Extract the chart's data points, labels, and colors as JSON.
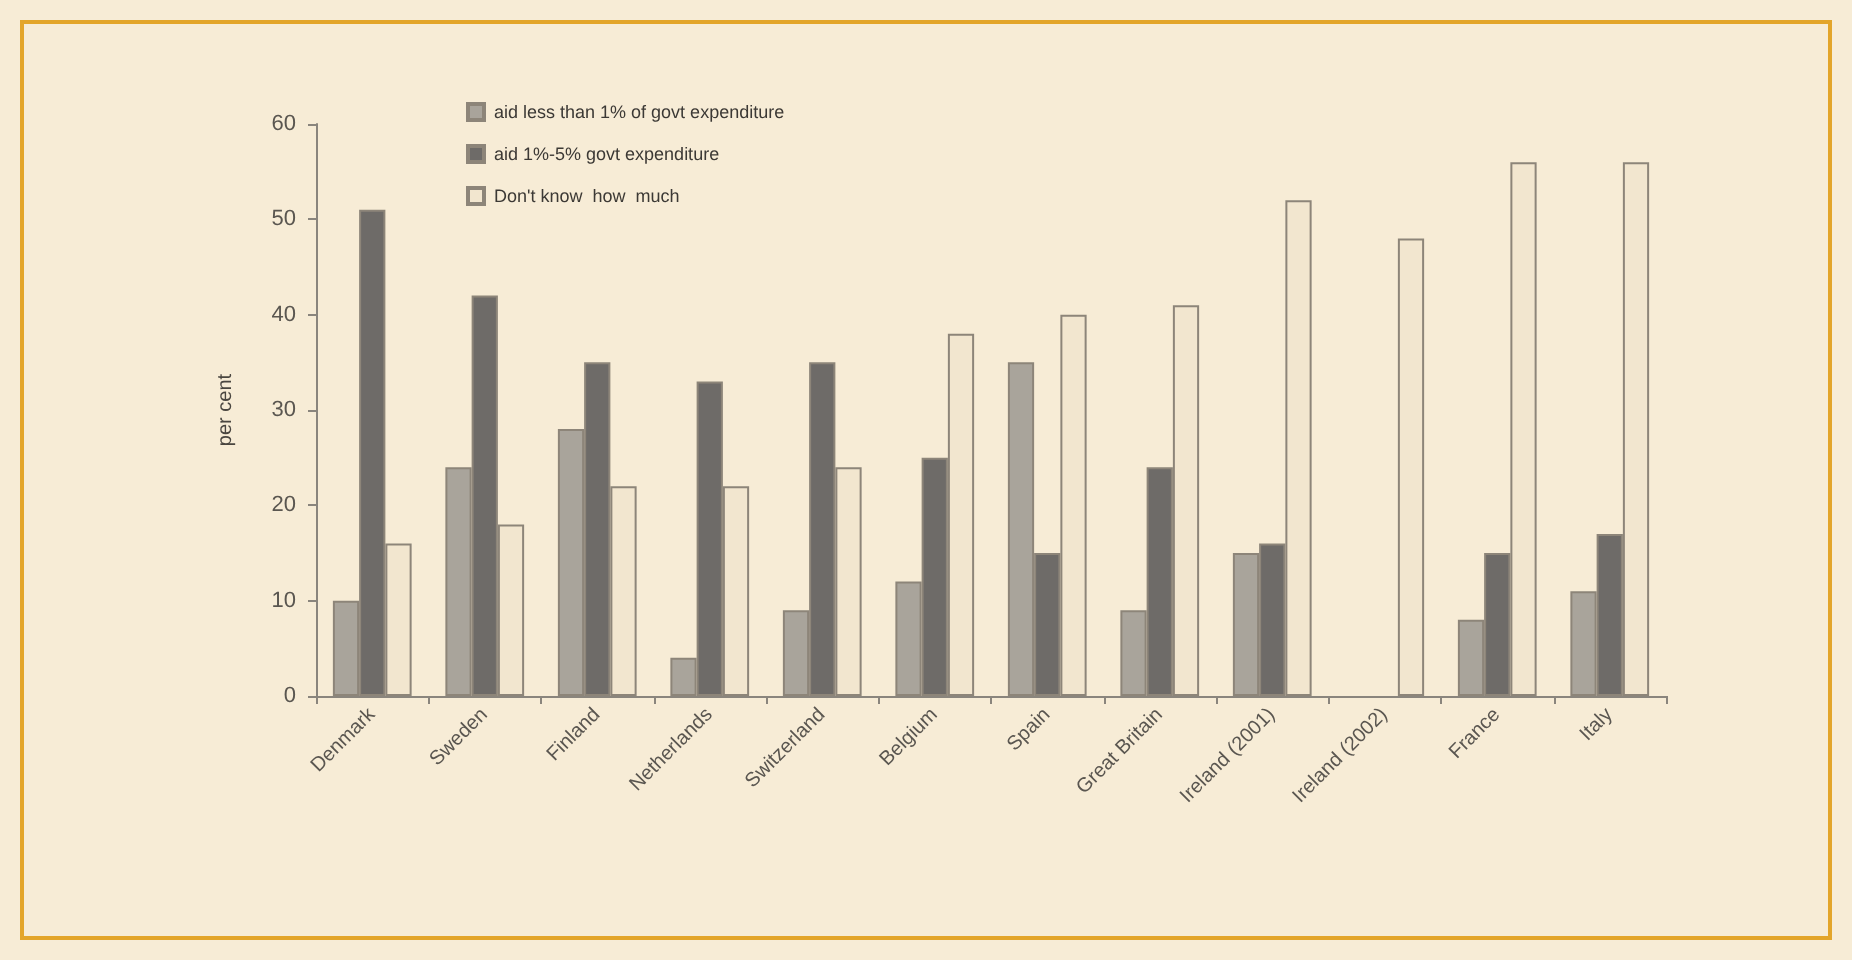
{
  "chart_data": {
    "type": "bar",
    "categories": [
      "Denmark",
      "Sweden",
      "Finland",
      "Netherlands",
      "Switzerland",
      "Belgium",
      "Spain",
      "Great Britain",
      "Ireland (2001)",
      "Ireland (2002)",
      "France",
      "Italy"
    ],
    "series": [
      {
        "name": "aid less than 1% of govt expenditure",
        "color": "#a9a49b",
        "values": [
          10,
          24,
          28,
          4,
          9,
          12,
          35,
          9,
          15,
          null,
          8,
          11
        ]
      },
      {
        "name": "aid 1%-5% govt expenditure",
        "color": "#6e6b68",
        "values": [
          51,
          42,
          35,
          33,
          35,
          25,
          15,
          24,
          16,
          null,
          15,
          17
        ]
      },
      {
        "name": "Don't know  how  much",
        "color": "#f2e6cf",
        "values": [
          16,
          18,
          22,
          22,
          24,
          38,
          40,
          41,
          52,
          48,
          56,
          56
        ]
      }
    ],
    "ylabel": "per cent",
    "ylim": [
      0,
      60
    ],
    "yticks": [
      0,
      10,
      20,
      30,
      40,
      50,
      60
    ],
    "grid": false,
    "legend": "top left"
  }
}
